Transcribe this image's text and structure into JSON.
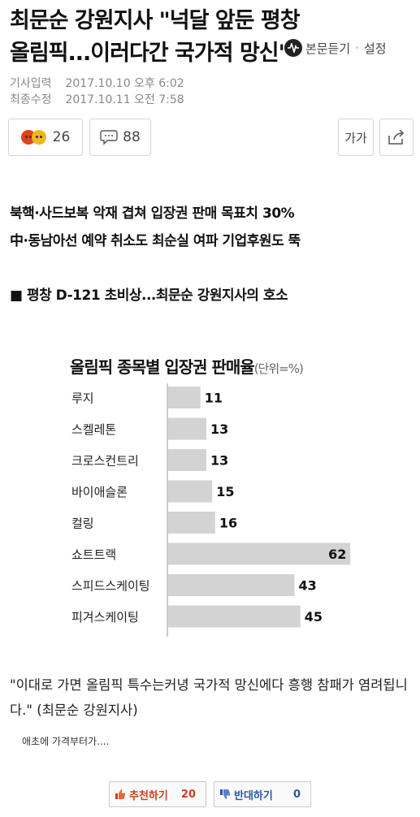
{
  "article": {
    "title": "최문순 강원지사 \"넉달 앞둔 평창올림픽...이러다간 국가적 망신\"",
    "listen_label": "본문듣기",
    "settings_label": "설정",
    "meta": {
      "input_key": "기사입력",
      "input_value": "2017.10.10 오후 6:02",
      "modified_key": "최종수정",
      "modified_value": "2017.10.11 오전 7:58"
    },
    "reaction_count": "26",
    "comment_count": "88",
    "font_label": "가가",
    "subheads": [
      "북핵·사드보복 악재 겹쳐 입장권 판매 목표치 30%",
      "中·동남아선 예약 취소도 최순실 여파 기업후원도 뚝",
      "■ 평창 D-121 초비상...최문순 강원지사의 호소"
    ],
    "quote": "\"이대로 가면 올림픽 특수는커녕 국가적 망신에다 흥행 참패가 염려됩니다.\" (최문순 강원지사)",
    "note": "애초에 가격부터가...."
  },
  "chart_data": {
    "type": "bar",
    "title": "올림픽 종목별 입장권 판매율",
    "unit": "(단위=%)",
    "categories": [
      "루지",
      "스켈레톤",
      "크로스컨트리",
      "바이애슬론",
      "컬링",
      "쇼트트랙",
      "스피드스케이팅",
      "피겨스케이팅"
    ],
    "values": [
      11,
      13,
      13,
      15,
      16,
      62,
      43,
      45
    ],
    "xlim": [
      0,
      65
    ],
    "bar_color": "#d3d3d3"
  },
  "votes": {
    "up_label": "추천하기",
    "up_count": "20",
    "down_label": "반대하기",
    "down_count": "0"
  }
}
